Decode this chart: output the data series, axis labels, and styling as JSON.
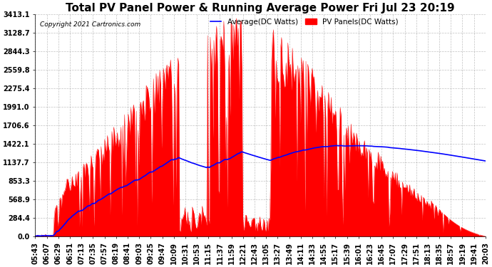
{
  "title": "Total PV Panel Power & Running Average Power Fri Jul 23 20:19",
  "copyright": "Copyright 2021 Cartronics.com",
  "legend_avg": "Average(DC Watts)",
  "legend_pv": "PV Panels(DC Watts)",
  "y_max": 3413.1,
  "y_min": 0.0,
  "y_ticks": [
    0.0,
    284.4,
    568.9,
    853.3,
    1137.7,
    1422.1,
    1706.6,
    1991.0,
    2275.4,
    2559.8,
    2844.3,
    3128.7,
    3413.1
  ],
  "background_color": "#ffffff",
  "grid_color": "#999999",
  "title_fontsize": 11,
  "tick_fontsize": 7,
  "x_tick_labels": [
    "05:43",
    "06:07",
    "06:29",
    "06:51",
    "07:13",
    "07:35",
    "07:57",
    "08:19",
    "08:41",
    "09:03",
    "09:25",
    "09:47",
    "10:09",
    "10:31",
    "10:53",
    "11:15",
    "11:37",
    "11:59",
    "12:21",
    "12:43",
    "13:05",
    "13:27",
    "13:49",
    "14:11",
    "14:33",
    "14:55",
    "15:17",
    "15:39",
    "16:01",
    "16:23",
    "16:45",
    "17:07",
    "17:29",
    "17:51",
    "18:13",
    "18:35",
    "18:57",
    "19:19",
    "19:41",
    "20:03"
  ],
  "pv_color": "#ff0000",
  "avg_color": "#0000ff",
  "line_width": 1.2
}
